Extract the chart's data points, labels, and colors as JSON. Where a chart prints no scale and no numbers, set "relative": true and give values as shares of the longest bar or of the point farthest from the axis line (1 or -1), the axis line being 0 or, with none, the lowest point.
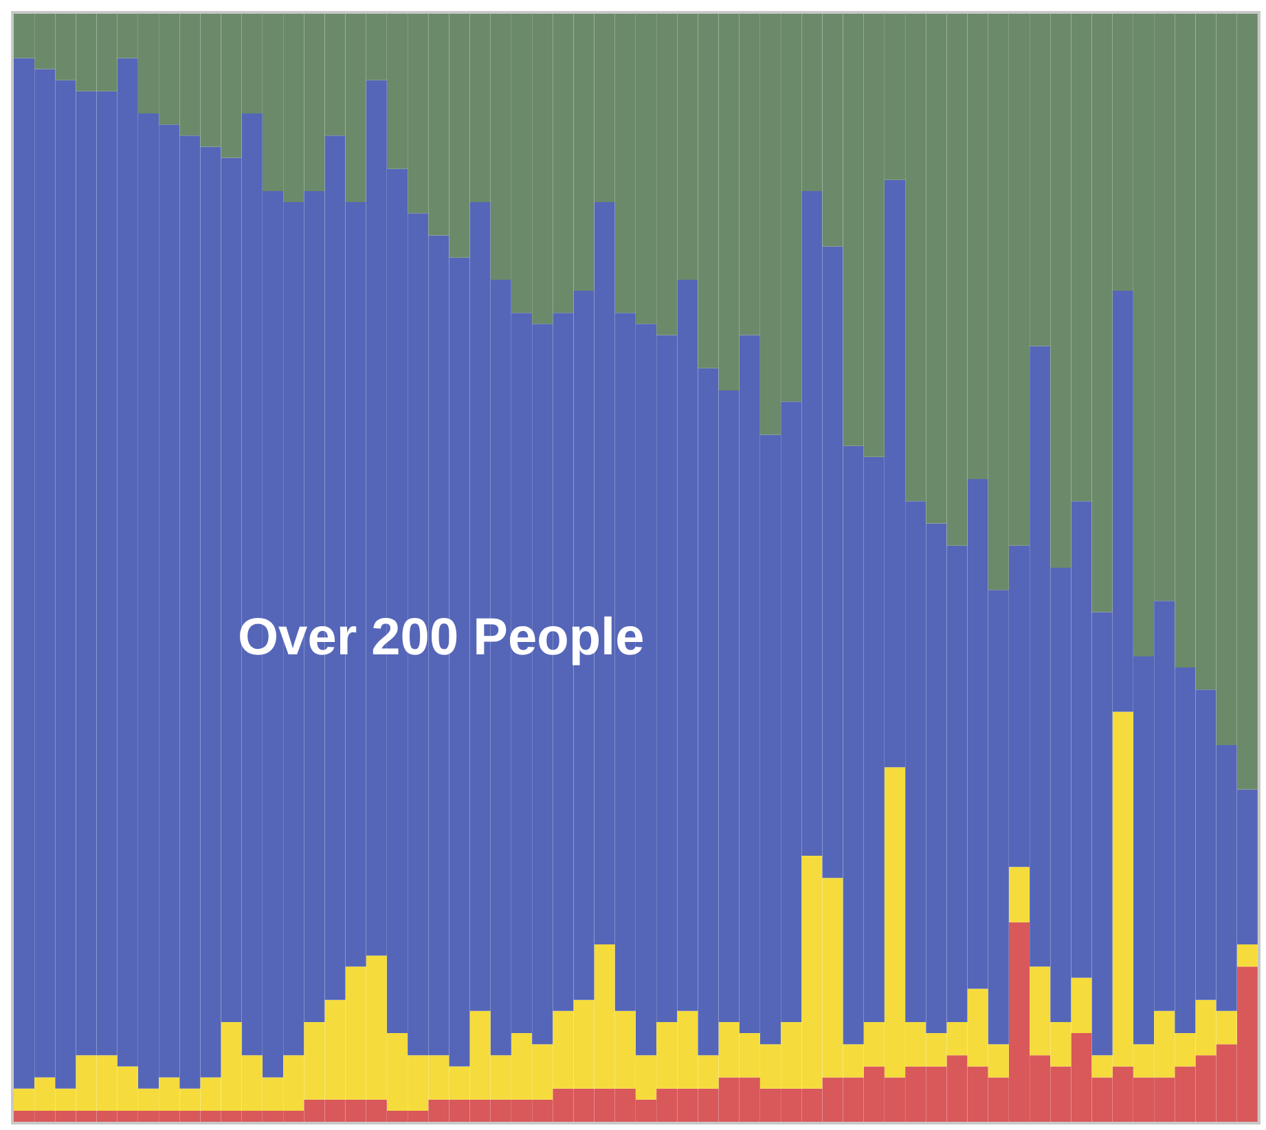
{
  "chart_data": {
    "type": "bar",
    "stacked": true,
    "relative": true,
    "annotations": [
      "Over 200 People"
    ],
    "categories": [
      null,
      null,
      null,
      null,
      null,
      null,
      null,
      null,
      null,
      null,
      null,
      null,
      null,
      null,
      null,
      null,
      null,
      null,
      null,
      null,
      null,
      null,
      null,
      null,
      null,
      null,
      null,
      null,
      null,
      null,
      null,
      null,
      null,
      null,
      null,
      null,
      null,
      null,
      null,
      null,
      null,
      null,
      null,
      null,
      null,
      null,
      null,
      null,
      null,
      null,
      null,
      null,
      null,
      null,
      null,
      null,
      null,
      null,
      null,
      null
    ],
    "series": [
      {
        "color": "#d9585a",
        "values": [
          0.01,
          0.01,
          0.01,
          0.01,
          0.01,
          0.01,
          0.01,
          0.01,
          0.01,
          0.01,
          0.01,
          0.01,
          0.01,
          0.01,
          0.02,
          0.02,
          0.02,
          0.02,
          0.01,
          0.01,
          0.02,
          0.02,
          0.02,
          0.02,
          0.02,
          0.02,
          0.03,
          0.03,
          0.03,
          0.03,
          0.02,
          0.03,
          0.03,
          0.03,
          0.04,
          0.04,
          0.03,
          0.03,
          0.03,
          0.04,
          0.04,
          0.05,
          0.04,
          0.05,
          0.05,
          0.06,
          0.05,
          0.04,
          0.18,
          0.06,
          0.05,
          0.08,
          0.04,
          0.05,
          0.04,
          0.04,
          0.05,
          0.06,
          0.07,
          0.14
        ]
      },
      {
        "color": "#f5dc3c",
        "values": [
          0.02,
          0.03,
          0.02,
          0.05,
          0.05,
          0.04,
          0.02,
          0.03,
          0.02,
          0.03,
          0.08,
          0.05,
          0.03,
          0.05,
          0.07,
          0.09,
          0.12,
          0.13,
          0.07,
          0.05,
          0.04,
          0.03,
          0.08,
          0.04,
          0.06,
          0.05,
          0.07,
          0.08,
          0.13,
          0.07,
          0.04,
          0.06,
          0.07,
          0.03,
          0.05,
          0.04,
          0.04,
          0.06,
          0.21,
          0.18,
          0.03,
          0.04,
          0.28,
          0.04,
          0.03,
          0.03,
          0.07,
          0.03,
          0.05,
          0.08,
          0.04,
          0.05,
          0.02,
          0.32,
          0.03,
          0.06,
          0.03,
          0.05,
          0.03,
          0.02
        ]
      },
      {
        "color": "#5566b8",
        "values": [
          0.93,
          0.91,
          0.91,
          0.87,
          0.87,
          0.91,
          0.88,
          0.86,
          0.86,
          0.84,
          0.78,
          0.85,
          0.8,
          0.77,
          0.75,
          0.78,
          0.69,
          0.79,
          0.78,
          0.76,
          0.74,
          0.73,
          0.73,
          0.7,
          0.65,
          0.65,
          0.63,
          0.64,
          0.67,
          0.63,
          0.66,
          0.62,
          0.66,
          0.62,
          0.57,
          0.63,
          0.55,
          0.56,
          0.6,
          0.57,
          0.54,
          0.51,
          0.53,
          0.47,
          0.46,
          0.43,
          0.46,
          0.41,
          0.29,
          0.56,
          0.41,
          0.43,
          0.4,
          0.38,
          0.35,
          0.37,
          0.33,
          0.28,
          0.24,
          0.14
        ]
      },
      {
        "color": "#6b8a6a",
        "values": [
          0.04,
          0.05,
          0.06,
          0.07,
          0.07,
          0.04,
          0.09,
          0.1,
          0.11,
          0.12,
          0.13,
          0.09,
          0.16,
          0.17,
          0.16,
          0.11,
          0.17,
          0.06,
          0.14,
          0.18,
          0.2,
          0.22,
          0.17,
          0.24,
          0.27,
          0.28,
          0.27,
          0.25,
          0.17,
          0.27,
          0.28,
          0.29,
          0.24,
          0.32,
          0.34,
          0.29,
          0.38,
          0.35,
          0.16,
          0.21,
          0.39,
          0.4,
          0.15,
          0.44,
          0.46,
          0.48,
          0.42,
          0.52,
          0.48,
          0.3,
          0.5,
          0.44,
          0.54,
          0.25,
          0.58,
          0.53,
          0.59,
          0.61,
          0.66,
          0.7
        ]
      }
    ]
  }
}
